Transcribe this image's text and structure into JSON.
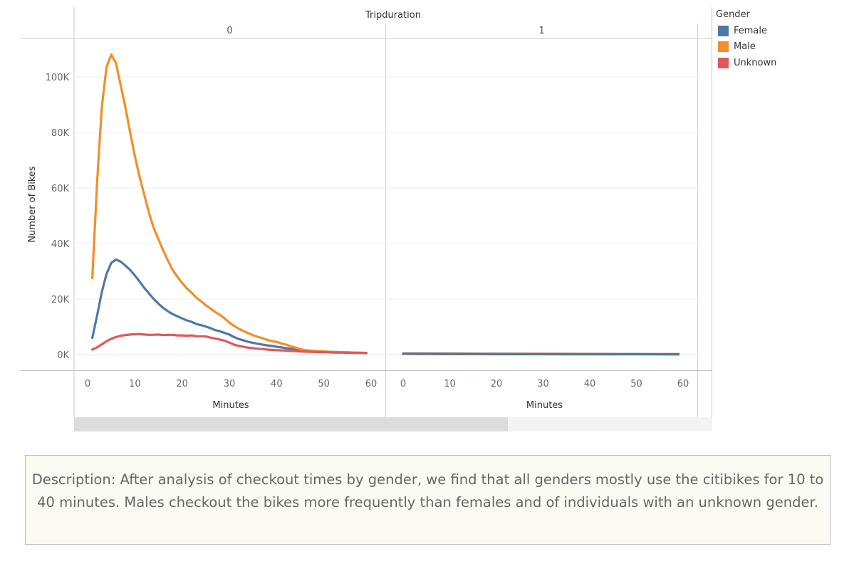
{
  "colors": {
    "Female": "#4e79a7",
    "Male": "#f28e2b",
    "Unknown": "#e15759"
  },
  "legend": {
    "title": "Gender",
    "items": [
      {
        "label": "Female",
        "color": "#4e79a7"
      },
      {
        "label": "Male",
        "color": "#f28e2b"
      },
      {
        "label": "Unknown",
        "color": "#e15759"
      }
    ]
  },
  "description": "Description: After analysis of checkout times by gender, we find that all genders mostly use the citibikes for 10 to 40 minutes. Males checkout the bikes more frequently than females and of individuals with an unknown gender.",
  "scrollbar": {
    "thumb_fraction": 0.68
  },
  "chart_data": {
    "type": "line",
    "column_header": "Tripduration",
    "ylabel": "Number of Bikes",
    "xlabel": "Minutes",
    "ylim": [
      0,
      110000
    ],
    "yticks": [
      0,
      20000,
      40000,
      60000,
      80000,
      100000
    ],
    "ytick_labels": [
      "0K",
      "20K",
      "40K",
      "60K",
      "80K",
      "100K"
    ],
    "xlim": [
      0,
      60
    ],
    "xticks": [
      0,
      10,
      20,
      30,
      40,
      50,
      60
    ],
    "panels": [
      {
        "header": "0",
        "series": [
          {
            "name": "Female",
            "x": [
              1,
              2,
              3,
              4,
              5,
              6,
              7,
              8,
              9,
              10,
              11,
              12,
              13,
              14,
              15,
              16,
              17,
              18,
              19,
              20,
              21,
              22,
              23,
              24,
              25,
              26,
              27,
              28,
              29,
              30,
              31,
              32,
              33,
              34,
              35,
              36,
              37,
              38,
              39,
              40,
              41,
              42,
              43,
              44,
              45,
              46,
              47,
              48,
              49,
              50,
              51,
              52,
              53,
              54,
              55,
              56,
              57,
              58,
              59
            ],
            "values": [
              6000,
              14000,
              22500,
              29000,
              33000,
              34200,
              33500,
              32000,
              30500,
              28500,
              26300,
              24000,
              22000,
              20000,
              18300,
              16800,
              15600,
              14600,
              13800,
              13000,
              12300,
              11800,
              11000,
              10600,
              10100,
              9500,
              8800,
              8400,
              7800,
              7200,
              6300,
              5600,
              5100,
              4600,
              4200,
              3900,
              3600,
              3300,
              3100,
              2800,
              2600,
              2300,
              2100,
              1900,
              1700,
              1550,
              1400,
              1300,
              1200,
              1100,
              1000,
              950,
              900,
              850,
              800,
              750,
              700,
              650,
              600
            ]
          },
          {
            "name": "Male",
            "x": [
              1,
              2,
              3,
              4,
              5,
              6,
              7,
              8,
              9,
              10,
              11,
              12,
              13,
              14,
              15,
              16,
              17,
              18,
              19,
              20,
              21,
              22,
              23,
              24,
              25,
              26,
              27,
              28,
              29,
              30,
              31,
              32,
              33,
              34,
              35,
              36,
              37,
              38,
              39,
              40,
              41,
              42,
              43,
              44,
              45,
              46,
              47,
              48,
              49,
              50,
              51,
              52,
              53,
              54,
              55,
              56,
              57,
              58,
              59
            ],
            "values": [
              27500,
              62000,
              89000,
              103500,
              108000,
              105000,
              97000,
              89000,
              80000,
              71500,
              64000,
              57500,
              51000,
              45500,
              41500,
              37500,
              33800,
              30500,
              28000,
              25800,
              23800,
              22300,
              20500,
              19200,
              17800,
              16600,
              15300,
              14300,
              13000,
              11500,
              10300,
              9300,
              8500,
              7700,
              7000,
              6400,
              5900,
              5300,
              4800,
              4600,
              4000,
              3600,
              3000,
              2500,
              2000,
              1600,
              1400,
              1300,
              1200,
              1100,
              1000,
              950,
              900,
              850,
              800,
              750,
              700,
              650,
              600
            ]
          },
          {
            "name": "Unknown",
            "x": [
              1,
              2,
              3,
              4,
              5,
              6,
              7,
              8,
              9,
              10,
              11,
              12,
              13,
              14,
              15,
              16,
              17,
              18,
              19,
              20,
              21,
              22,
              23,
              24,
              25,
              26,
              27,
              28,
              29,
              30,
              31,
              32,
              33,
              34,
              35,
              36,
              37,
              38,
              39,
              40,
              41,
              42,
              43,
              44,
              45,
              46,
              47,
              48,
              49,
              50,
              51,
              52,
              53,
              54,
              55,
              56,
              57,
              58,
              59
            ],
            "values": [
              1800,
              2600,
              3700,
              4800,
              5700,
              6300,
              6800,
              7000,
              7200,
              7300,
              7400,
              7200,
              7100,
              7100,
              7200,
              7000,
              7100,
              7100,
              6900,
              6900,
              6800,
              6900,
              6600,
              6600,
              6500,
              6100,
              5800,
              5400,
              5000,
              4300,
              3600,
              3100,
              2800,
              2500,
              2300,
              2100,
              2000,
              1800,
              1700,
              1600,
              1500,
              1400,
              1300,
              1200,
              1100,
              1050,
              1000,
              950,
              900,
              850,
              800,
              750,
              700,
              680,
              650,
              620,
              600,
              580,
              550
            ]
          }
        ]
      },
      {
        "header": "1",
        "series": [
          {
            "name": "Unknown",
            "x": [
              0,
              5,
              10,
              15,
              20,
              25,
              30,
              35,
              40,
              45,
              50,
              55,
              59
            ],
            "values": [
              200,
              180,
              160,
              150,
              140,
              130,
              120,
              110,
              100,
              90,
              80,
              70,
              60
            ]
          },
          {
            "name": "Male",
            "x": [
              0,
              5,
              10,
              15,
              20,
              25,
              30,
              35,
              40,
              45,
              50,
              55,
              59
            ],
            "values": [
              400,
              380,
              350,
              330,
              310,
              290,
              270,
              250,
              230,
              210,
              190,
              170,
              150
            ]
          },
          {
            "name": "Female",
            "x": [
              0,
              5,
              10,
              15,
              20,
              25,
              30,
              35,
              40,
              45,
              50,
              55,
              59
            ],
            "values": [
              300,
              280,
              260,
              240,
              220,
              200,
              190,
              180,
              170,
              160,
              150,
              140,
              120
            ]
          }
        ]
      }
    ]
  }
}
